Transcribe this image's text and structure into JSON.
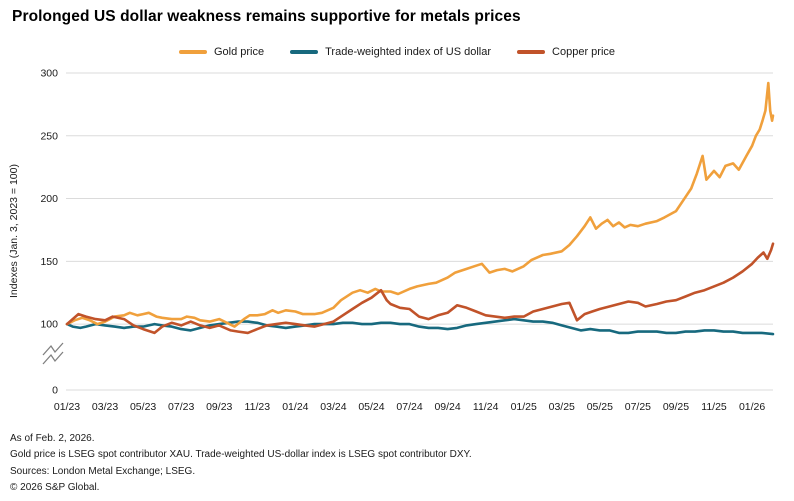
{
  "title": "Prolonged US dollar weakness remains supportive for metals prices",
  "legend": {
    "items": [
      {
        "label": "Gold price",
        "color": "#F0A03C"
      },
      {
        "label": "Trade-weighted index of US dollar",
        "color": "#17697E"
      },
      {
        "label": "Copper price",
        "color": "#C1532A"
      }
    ]
  },
  "footnotes": {
    "as_of": "As of Feb. 2, 2026.",
    "description": "Gold price is LSEG spot contributor XAU. Trade-weighted US-dollar index is LSEG spot contributor DXY.",
    "sources": "Sources: London Metal Exchange; LSEG.",
    "copyright": "© 2026 S&P Global."
  },
  "chart_data": {
    "type": "line",
    "title": "Prolonged US dollar weakness remains supportive for metals prices",
    "xlabel": "",
    "ylabel": "Indexes (Jan. 3, 2023 = 100)",
    "x_unit": "months since Jan. 2023 (0 = 01/23, 37.1 = Feb. 2, 2026)",
    "ylim": [
      0,
      300
    ],
    "y_axis_break": true,
    "grid": "horizontal",
    "legend_position": "top",
    "y_ticks": [
      300,
      250,
      200,
      150,
      100,
      0
    ],
    "x_tick_labels": [
      "01/23",
      "03/23",
      "05/23",
      "07/23",
      "09/23",
      "11/23",
      "01/24",
      "03/24",
      "05/24",
      "07/24",
      "09/24",
      "11/24",
      "01/25",
      "03/25",
      "05/25",
      "07/25",
      "09/25",
      "11/25",
      "01/26"
    ],
    "x_tick_month_step": 2,
    "draw_order": [
      1,
      0,
      2
    ],
    "series": [
      {
        "name": "Gold price",
        "color": "#F0A03C",
        "points": [
          [
            0,
            100
          ],
          [
            0.4,
            103
          ],
          [
            0.8,
            105
          ],
          [
            1.2,
            103
          ],
          [
            1.6,
            100
          ],
          [
            2,
            102
          ],
          [
            2.5,
            106
          ],
          [
            3,
            107
          ],
          [
            3.3,
            109
          ],
          [
            3.7,
            107
          ],
          [
            4,
            108
          ],
          [
            4.3,
            109
          ],
          [
            4.7,
            106
          ],
          [
            5,
            105
          ],
          [
            5.5,
            104
          ],
          [
            6,
            104
          ],
          [
            6.3,
            106
          ],
          [
            6.7,
            105
          ],
          [
            7,
            103
          ],
          [
            7.5,
            102
          ],
          [
            8,
            104
          ],
          [
            8.4,
            101
          ],
          [
            8.8,
            98
          ],
          [
            9.3,
            104
          ],
          [
            9.6,
            107
          ],
          [
            10,
            107
          ],
          [
            10.4,
            108
          ],
          [
            10.8,
            111
          ],
          [
            11.1,
            109
          ],
          [
            11.5,
            111
          ],
          [
            12,
            110
          ],
          [
            12.4,
            108
          ],
          [
            13,
            108
          ],
          [
            13.4,
            109
          ],
          [
            14,
            113
          ],
          [
            14.4,
            119
          ],
          [
            15,
            125
          ],
          [
            15.4,
            127
          ],
          [
            15.8,
            125
          ],
          [
            16.2,
            128
          ],
          [
            16.5,
            126
          ],
          [
            17,
            126
          ],
          [
            17.4,
            124
          ],
          [
            18,
            128
          ],
          [
            18.4,
            130
          ],
          [
            19,
            132
          ],
          [
            19.4,
            133
          ],
          [
            20,
            137
          ],
          [
            20.4,
            141
          ],
          [
            21,
            144
          ],
          [
            21.4,
            146
          ],
          [
            21.8,
            148
          ],
          [
            22.2,
            141
          ],
          [
            22.6,
            143
          ],
          [
            23,
            144
          ],
          [
            23.4,
            142
          ],
          [
            24,
            146
          ],
          [
            24.4,
            151
          ],
          [
            25,
            155
          ],
          [
            25.4,
            156
          ],
          [
            26,
            158
          ],
          [
            26.4,
            163
          ],
          [
            26.8,
            170
          ],
          [
            27.2,
            178
          ],
          [
            27.5,
            185
          ],
          [
            27.8,
            176
          ],
          [
            28.1,
            180
          ],
          [
            28.4,
            183
          ],
          [
            28.7,
            178
          ],
          [
            29,
            181
          ],
          [
            29.3,
            177
          ],
          [
            29.6,
            179
          ],
          [
            30,
            178
          ],
          [
            30.4,
            180
          ],
          [
            31,
            182
          ],
          [
            31.4,
            185
          ],
          [
            32,
            190
          ],
          [
            32.4,
            199
          ],
          [
            32.8,
            208
          ],
          [
            33.1,
            220
          ],
          [
            33.4,
            234
          ],
          [
            33.6,
            215
          ],
          [
            34,
            222
          ],
          [
            34.3,
            217
          ],
          [
            34.6,
            226
          ],
          [
            35,
            228
          ],
          [
            35.3,
            223
          ],
          [
            35.7,
            234
          ],
          [
            36,
            242
          ],
          [
            36.2,
            250
          ],
          [
            36.4,
            255
          ],
          [
            36.55,
            262
          ],
          [
            36.7,
            270
          ],
          [
            36.85,
            292
          ],
          [
            36.95,
            270
          ],
          [
            37.05,
            262
          ],
          [
            37.1,
            266
          ]
        ]
      },
      {
        "name": "Trade-weighted index of US dollar",
        "color": "#17697E",
        "points": [
          [
            0,
            100
          ],
          [
            0.3,
            98
          ],
          [
            0.7,
            97
          ],
          [
            1,
            98
          ],
          [
            1.5,
            100
          ],
          [
            2,
            99
          ],
          [
            2.5,
            98
          ],
          [
            3,
            97
          ],
          [
            3.5,
            98
          ],
          [
            4,
            98
          ],
          [
            4.6,
            100
          ],
          [
            5,
            99
          ],
          [
            5.5,
            98
          ],
          [
            6,
            96
          ],
          [
            6.5,
            95
          ],
          [
            7,
            97
          ],
          [
            7.5,
            99
          ],
          [
            8,
            100
          ],
          [
            8.5,
            101
          ],
          [
            9,
            102
          ],
          [
            9.5,
            102
          ],
          [
            10,
            101
          ],
          [
            10.5,
            99
          ],
          [
            11,
            98
          ],
          [
            11.5,
            97
          ],
          [
            12,
            98
          ],
          [
            12.5,
            99
          ],
          [
            13,
            100
          ],
          [
            13.5,
            100
          ],
          [
            14,
            100
          ],
          [
            14.5,
            101
          ],
          [
            15,
            101
          ],
          [
            15.5,
            100
          ],
          [
            16,
            100
          ],
          [
            16.5,
            101
          ],
          [
            17,
            101
          ],
          [
            17.5,
            100
          ],
          [
            18,
            100
          ],
          [
            18.5,
            98
          ],
          [
            19,
            97
          ],
          [
            19.5,
            97
          ],
          [
            20,
            96
          ],
          [
            20.5,
            97
          ],
          [
            21,
            99
          ],
          [
            21.5,
            100
          ],
          [
            22,
            101
          ],
          [
            22.5,
            102
          ],
          [
            23,
            103
          ],
          [
            23.5,
            104
          ],
          [
            24,
            103
          ],
          [
            24.5,
            102
          ],
          [
            25,
            102
          ],
          [
            25.5,
            101
          ],
          [
            26,
            99
          ],
          [
            26.5,
            97
          ],
          [
            27,
            95
          ],
          [
            27.5,
            96
          ],
          [
            28,
            95
          ],
          [
            28.5,
            95
          ],
          [
            29,
            93
          ],
          [
            29.5,
            93
          ],
          [
            30,
            94
          ],
          [
            30.5,
            94
          ],
          [
            31,
            94
          ],
          [
            31.5,
            93
          ],
          [
            32,
            93
          ],
          [
            32.5,
            94
          ],
          [
            33,
            94
          ],
          [
            33.5,
            95
          ],
          [
            34,
            95
          ],
          [
            34.5,
            94
          ],
          [
            35,
            94
          ],
          [
            35.5,
            93
          ],
          [
            36,
            93
          ],
          [
            36.5,
            93
          ],
          [
            37.1,
            92
          ]
        ]
      },
      {
        "name": "Copper price",
        "color": "#C1532A",
        "points": [
          [
            0,
            100
          ],
          [
            0.6,
            108
          ],
          [
            1,
            106
          ],
          [
            1.5,
            104
          ],
          [
            2,
            103
          ],
          [
            2.4,
            106
          ],
          [
            3,
            104
          ],
          [
            3.5,
            99
          ],
          [
            4,
            96
          ],
          [
            4.6,
            93
          ],
          [
            5,
            98
          ],
          [
            5.5,
            101
          ],
          [
            6,
            99
          ],
          [
            6.5,
            102
          ],
          [
            7,
            99
          ],
          [
            7.5,
            97
          ],
          [
            8,
            99
          ],
          [
            8.6,
            95
          ],
          [
            9,
            94
          ],
          [
            9.5,
            93
          ],
          [
            10,
            96
          ],
          [
            10.5,
            99
          ],
          [
            11,
            100
          ],
          [
            11.5,
            101
          ],
          [
            12,
            100
          ],
          [
            12.5,
            99
          ],
          [
            13,
            98
          ],
          [
            13.5,
            100
          ],
          [
            14,
            102
          ],
          [
            14.5,
            107
          ],
          [
            15,
            112
          ],
          [
            15.5,
            117
          ],
          [
            16,
            121
          ],
          [
            16.5,
            127
          ],
          [
            16.8,
            119
          ],
          [
            17,
            116
          ],
          [
            17.5,
            113
          ],
          [
            18,
            112
          ],
          [
            18.5,
            106
          ],
          [
            19,
            104
          ],
          [
            19.5,
            107
          ],
          [
            20,
            109
          ],
          [
            20.5,
            115
          ],
          [
            21,
            113
          ],
          [
            21.5,
            110
          ],
          [
            22,
            107
          ],
          [
            22.5,
            106
          ],
          [
            23,
            105
          ],
          [
            23.5,
            106
          ],
          [
            24,
            106
          ],
          [
            24.5,
            110
          ],
          [
            25,
            112
          ],
          [
            25.5,
            114
          ],
          [
            26,
            116
          ],
          [
            26.4,
            117
          ],
          [
            26.8,
            103
          ],
          [
            27.2,
            108
          ],
          [
            27.6,
            110
          ],
          [
            28,
            112
          ],
          [
            28.5,
            114
          ],
          [
            29,
            116
          ],
          [
            29.5,
            118
          ],
          [
            30,
            117
          ],
          [
            30.4,
            114
          ],
          [
            31,
            116
          ],
          [
            31.5,
            118
          ],
          [
            32,
            119
          ],
          [
            32.5,
            122
          ],
          [
            33,
            125
          ],
          [
            33.5,
            127
          ],
          [
            34,
            130
          ],
          [
            34.5,
            133
          ],
          [
            35,
            137
          ],
          [
            35.5,
            142
          ],
          [
            36,
            148
          ],
          [
            36.3,
            153
          ],
          [
            36.6,
            157
          ],
          [
            36.8,
            152
          ],
          [
            37,
            159
          ],
          [
            37.1,
            164
          ]
        ]
      }
    ]
  }
}
